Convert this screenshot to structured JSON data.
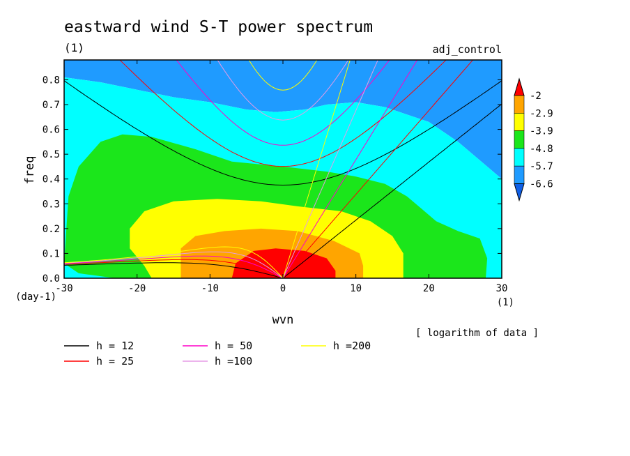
{
  "chart_data": {
    "type": "heatmap",
    "title": "eastward wind S-T power spectrum",
    "subtitle": "(1)",
    "run_label": "adj_control",
    "xlabel": "wvn",
    "ylabel": "freq",
    "x_unit": "(1)",
    "y_unit": "(day-1)",
    "xlim": [
      -30,
      30
    ],
    "ylim": [
      0,
      0.88
    ],
    "x_ticks": [
      -30,
      -20,
      -10,
      0,
      10,
      20,
      30
    ],
    "x_tick_labels": [
      "-30",
      "-20",
      "-10",
      "0",
      "10",
      "20",
      "30"
    ],
    "y_ticks": [
      0,
      0.1,
      0.2,
      0.3,
      0.4,
      0.5,
      0.6,
      0.7,
      0.8
    ],
    "y_tick_labels": [
      "0.0",
      "0.1",
      "0.2",
      "0.3",
      "0.4",
      "0.5",
      "0.6",
      "0.7",
      "0.8"
    ],
    "grid": false,
    "note": "[ logarithm of data ]",
    "colorbar": {
      "levels": [
        "-2",
        "-2.9",
        "-3.9",
        "-4.8",
        "-5.7",
        "-6.6"
      ],
      "colors": [
        "#0f5fe6",
        "#1f9bff",
        "#00ffff",
        "#1be61b",
        "#ffff00",
        "#ffa500",
        "#ff0000"
      ]
    },
    "regions": [
      {
        "level": "< -6.6",
        "color": "#0f5fe6",
        "points": [
          [
            -5,
            0.88
          ],
          [
            5,
            0.88
          ],
          [
            2,
            0.81
          ],
          [
            -2,
            0.79
          ]
        ]
      },
      {
        "level": "< -6.6",
        "color": "#0f5fe6",
        "points": [
          [
            23,
            0.88
          ],
          [
            30,
            0.88
          ],
          [
            30,
            0.58
          ],
          [
            27,
            0.7
          ],
          [
            24,
            0.82
          ]
        ]
      },
      {
        "level": "-6.6 to -5.7",
        "color": "#1f9bff",
        "points": [
          [
            -30,
            0.88
          ],
          [
            30,
            0.88
          ],
          [
            30,
            0.4
          ],
          [
            28,
            0.45
          ],
          [
            24,
            0.55
          ],
          [
            20,
            0.63
          ],
          [
            14,
            0.69
          ],
          [
            10,
            0.71
          ],
          [
            6,
            0.7
          ],
          [
            3,
            0.68
          ],
          [
            -1,
            0.67
          ],
          [
            -5,
            0.68
          ],
          [
            -10,
            0.71
          ],
          [
            -15,
            0.73
          ],
          [
            -20,
            0.76
          ],
          [
            -25,
            0.79
          ],
          [
            -30,
            0.81
          ]
        ]
      },
      {
        "level": "-5.7 to -4.8",
        "color": "#00ffff",
        "points": [
          [
            -30,
            0.81
          ],
          [
            -25,
            0.79
          ],
          [
            -20,
            0.76
          ],
          [
            -15,
            0.73
          ],
          [
            -10,
            0.71
          ],
          [
            -5,
            0.68
          ],
          [
            -1,
            0.67
          ],
          [
            3,
            0.68
          ],
          [
            6,
            0.7
          ],
          [
            10,
            0.71
          ],
          [
            14,
            0.69
          ],
          [
            20,
            0.63
          ],
          [
            24,
            0.55
          ],
          [
            28,
            0.45
          ],
          [
            30,
            0.4
          ],
          [
            30,
            0
          ],
          [
            -30,
            0
          ]
        ]
      },
      {
        "level": "-4.8 to -3.9",
        "color": "#1be61b",
        "points": [
          [
            -30,
            0.06
          ],
          [
            -29.4,
            0.33
          ],
          [
            -28,
            0.45
          ],
          [
            -25,
            0.55
          ],
          [
            -22,
            0.58
          ],
          [
            -18,
            0.57
          ],
          [
            -12,
            0.52
          ],
          [
            -7,
            0.47
          ],
          [
            0,
            0.45
          ],
          [
            6,
            0.43
          ],
          [
            10,
            0.41
          ],
          [
            14,
            0.38
          ],
          [
            17,
            0.33
          ],
          [
            19,
            0.28
          ],
          [
            21,
            0.23
          ],
          [
            24,
            0.19
          ],
          [
            27,
            0.16
          ],
          [
            28,
            0.08
          ],
          [
            27.8,
            0
          ],
          [
            -23,
            0
          ],
          [
            -28,
            0.02
          ]
        ]
      },
      {
        "level": "-3.9 to -2.9",
        "color": "#ffff00",
        "points": [
          [
            -18,
            0
          ],
          [
            -19,
            0.05
          ],
          [
            -21,
            0.12
          ],
          [
            -21,
            0.2
          ],
          [
            -19,
            0.27
          ],
          [
            -15,
            0.31
          ],
          [
            -9,
            0.32
          ],
          [
            -3,
            0.31
          ],
          [
            2,
            0.29
          ],
          [
            8,
            0.27
          ],
          [
            12,
            0.23
          ],
          [
            15,
            0.17
          ],
          [
            16.5,
            0.1
          ],
          [
            16.5,
            0
          ]
        ]
      },
      {
        "level": "-2.9 to -2",
        "color": "#ffa500",
        "points": [
          [
            -14,
            0
          ],
          [
            -14,
            0.08
          ],
          [
            -14,
            0.12
          ],
          [
            -12,
            0.17
          ],
          [
            -8,
            0.19
          ],
          [
            -3,
            0.2
          ],
          [
            2,
            0.19
          ],
          [
            7,
            0.15
          ],
          [
            10.5,
            0.1
          ],
          [
            11,
            0.05
          ],
          [
            11,
            0
          ]
        ]
      },
      {
        "level": "> -2",
        "color": "#ff0000",
        "points": [
          [
            -7,
            0
          ],
          [
            -6.5,
            0.06
          ],
          [
            -4,
            0.11
          ],
          [
            -1,
            0.12
          ],
          [
            3,
            0.11
          ],
          [
            6,
            0.08
          ],
          [
            7.2,
            0.03
          ],
          [
            7.2,
            0
          ]
        ]
      }
    ],
    "series": [
      {
        "name": "h = 12",
        "color": "#000000",
        "depth": 12
      },
      {
        "name": "h = 25",
        "color": "#ff0000",
        "depth": 25
      },
      {
        "name": "h = 50",
        "color": "#ff00c8",
        "depth": 50
      },
      {
        "name": "h =100",
        "color": "#e69be6",
        "depth": 100
      },
      {
        "name": "h =200",
        "color": "#ffff00",
        "depth": 200
      }
    ]
  }
}
